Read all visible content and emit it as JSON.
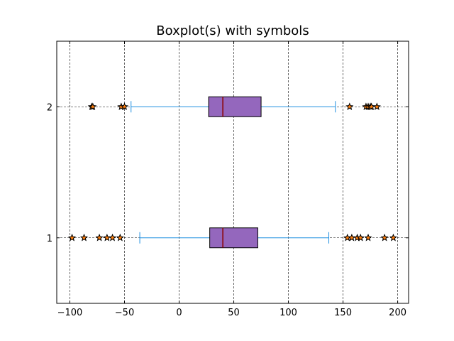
{
  "chart_data": {
    "type": "boxplot",
    "orientation": "horizontal",
    "title": "Boxplot(s) with symbols",
    "xlabel": "",
    "ylabel": "",
    "xlim": [
      -112,
      210
    ],
    "ylim": [
      0.5,
      2.5
    ],
    "xticks": [
      -100,
      -50,
      0,
      50,
      100,
      150,
      200
    ],
    "xtick_labels": [
      "−100",
      "−50",
      "0",
      "50",
      "100",
      "150",
      "200"
    ],
    "yticks": [
      1,
      2
    ],
    "ytick_labels": [
      "1",
      "2"
    ],
    "grid": true,
    "colors": {
      "box_fill": "#9467bd",
      "box_edge": "#000000",
      "median": "#8b0000",
      "whisker": "#1f8fe0",
      "flier_fill": "#ff7f0e",
      "flier_edge": "#000000",
      "grid": "#000000"
    },
    "series": [
      {
        "position": 1,
        "whisker_low": -36,
        "q1": 28,
        "median": 40,
        "q3": 72,
        "whisker_high": 137,
        "fliers": [
          -98,
          -87,
          -73,
          -66,
          -61,
          -54,
          154,
          158,
          163,
          166,
          173,
          188,
          196
        ]
      },
      {
        "position": 2,
        "whisker_low": -44,
        "q1": 27,
        "median": 40,
        "q3": 75,
        "whisker_high": 143,
        "fliers": [
          -80,
          -79,
          -53,
          -50,
          156,
          171,
          173,
          175,
          176,
          181
        ]
      }
    ]
  }
}
